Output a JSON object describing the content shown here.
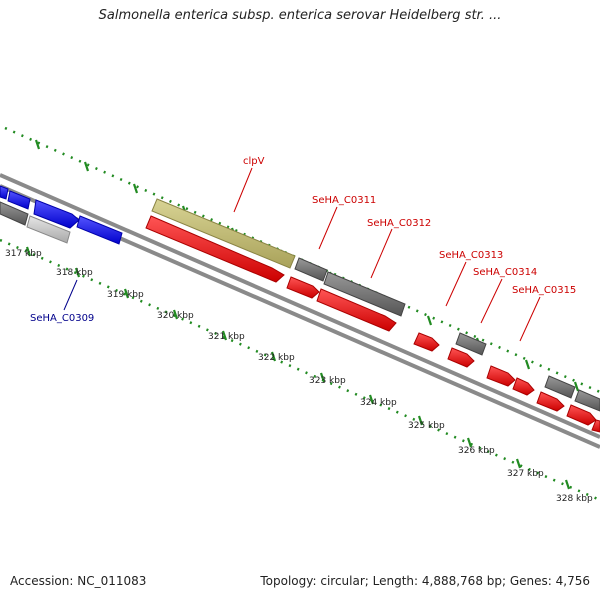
{
  "title": "Salmonella enterica subsp. enterica serovar Heidelberg str. ...",
  "footer": {
    "accession": "Accession: NC_011083",
    "stats": "Topology: circular; Length: 4,888,768 bp; Genes: 4,756"
  },
  "scale_labels": [
    "317 kbp",
    "318 kbp",
    "319 kbp",
    "320 kbp",
    "321 kbp",
    "322 kbp",
    "323 kbp",
    "324 kbp",
    "325 kbp",
    "326 kbp",
    "327 kbp",
    "328 kbp"
  ],
  "gene_labels": [
    {
      "text": "clpV",
      "color": "#cc0000"
    },
    {
      "text": "SeHA_C0311",
      "color": "#cc0000"
    },
    {
      "text": "SeHA_C0312",
      "color": "#cc0000"
    },
    {
      "text": "SeHA_C0313",
      "color": "#cc0000"
    },
    {
      "text": "SeHA_C0314",
      "color": "#cc0000"
    },
    {
      "text": "SeHA_C0315",
      "color": "#cc0000"
    },
    {
      "text": "SeHA_C0309",
      "color": "#00008b"
    }
  ],
  "colors": {
    "cds_forward": "#ee0000",
    "cds_blue": "#1a1aff",
    "cds_grey": "#777777",
    "cds_light": "#c0c0c0",
    "cds_khaki": "#bdb76b",
    "backbone": "#888888",
    "ticks": "#228b22"
  }
}
